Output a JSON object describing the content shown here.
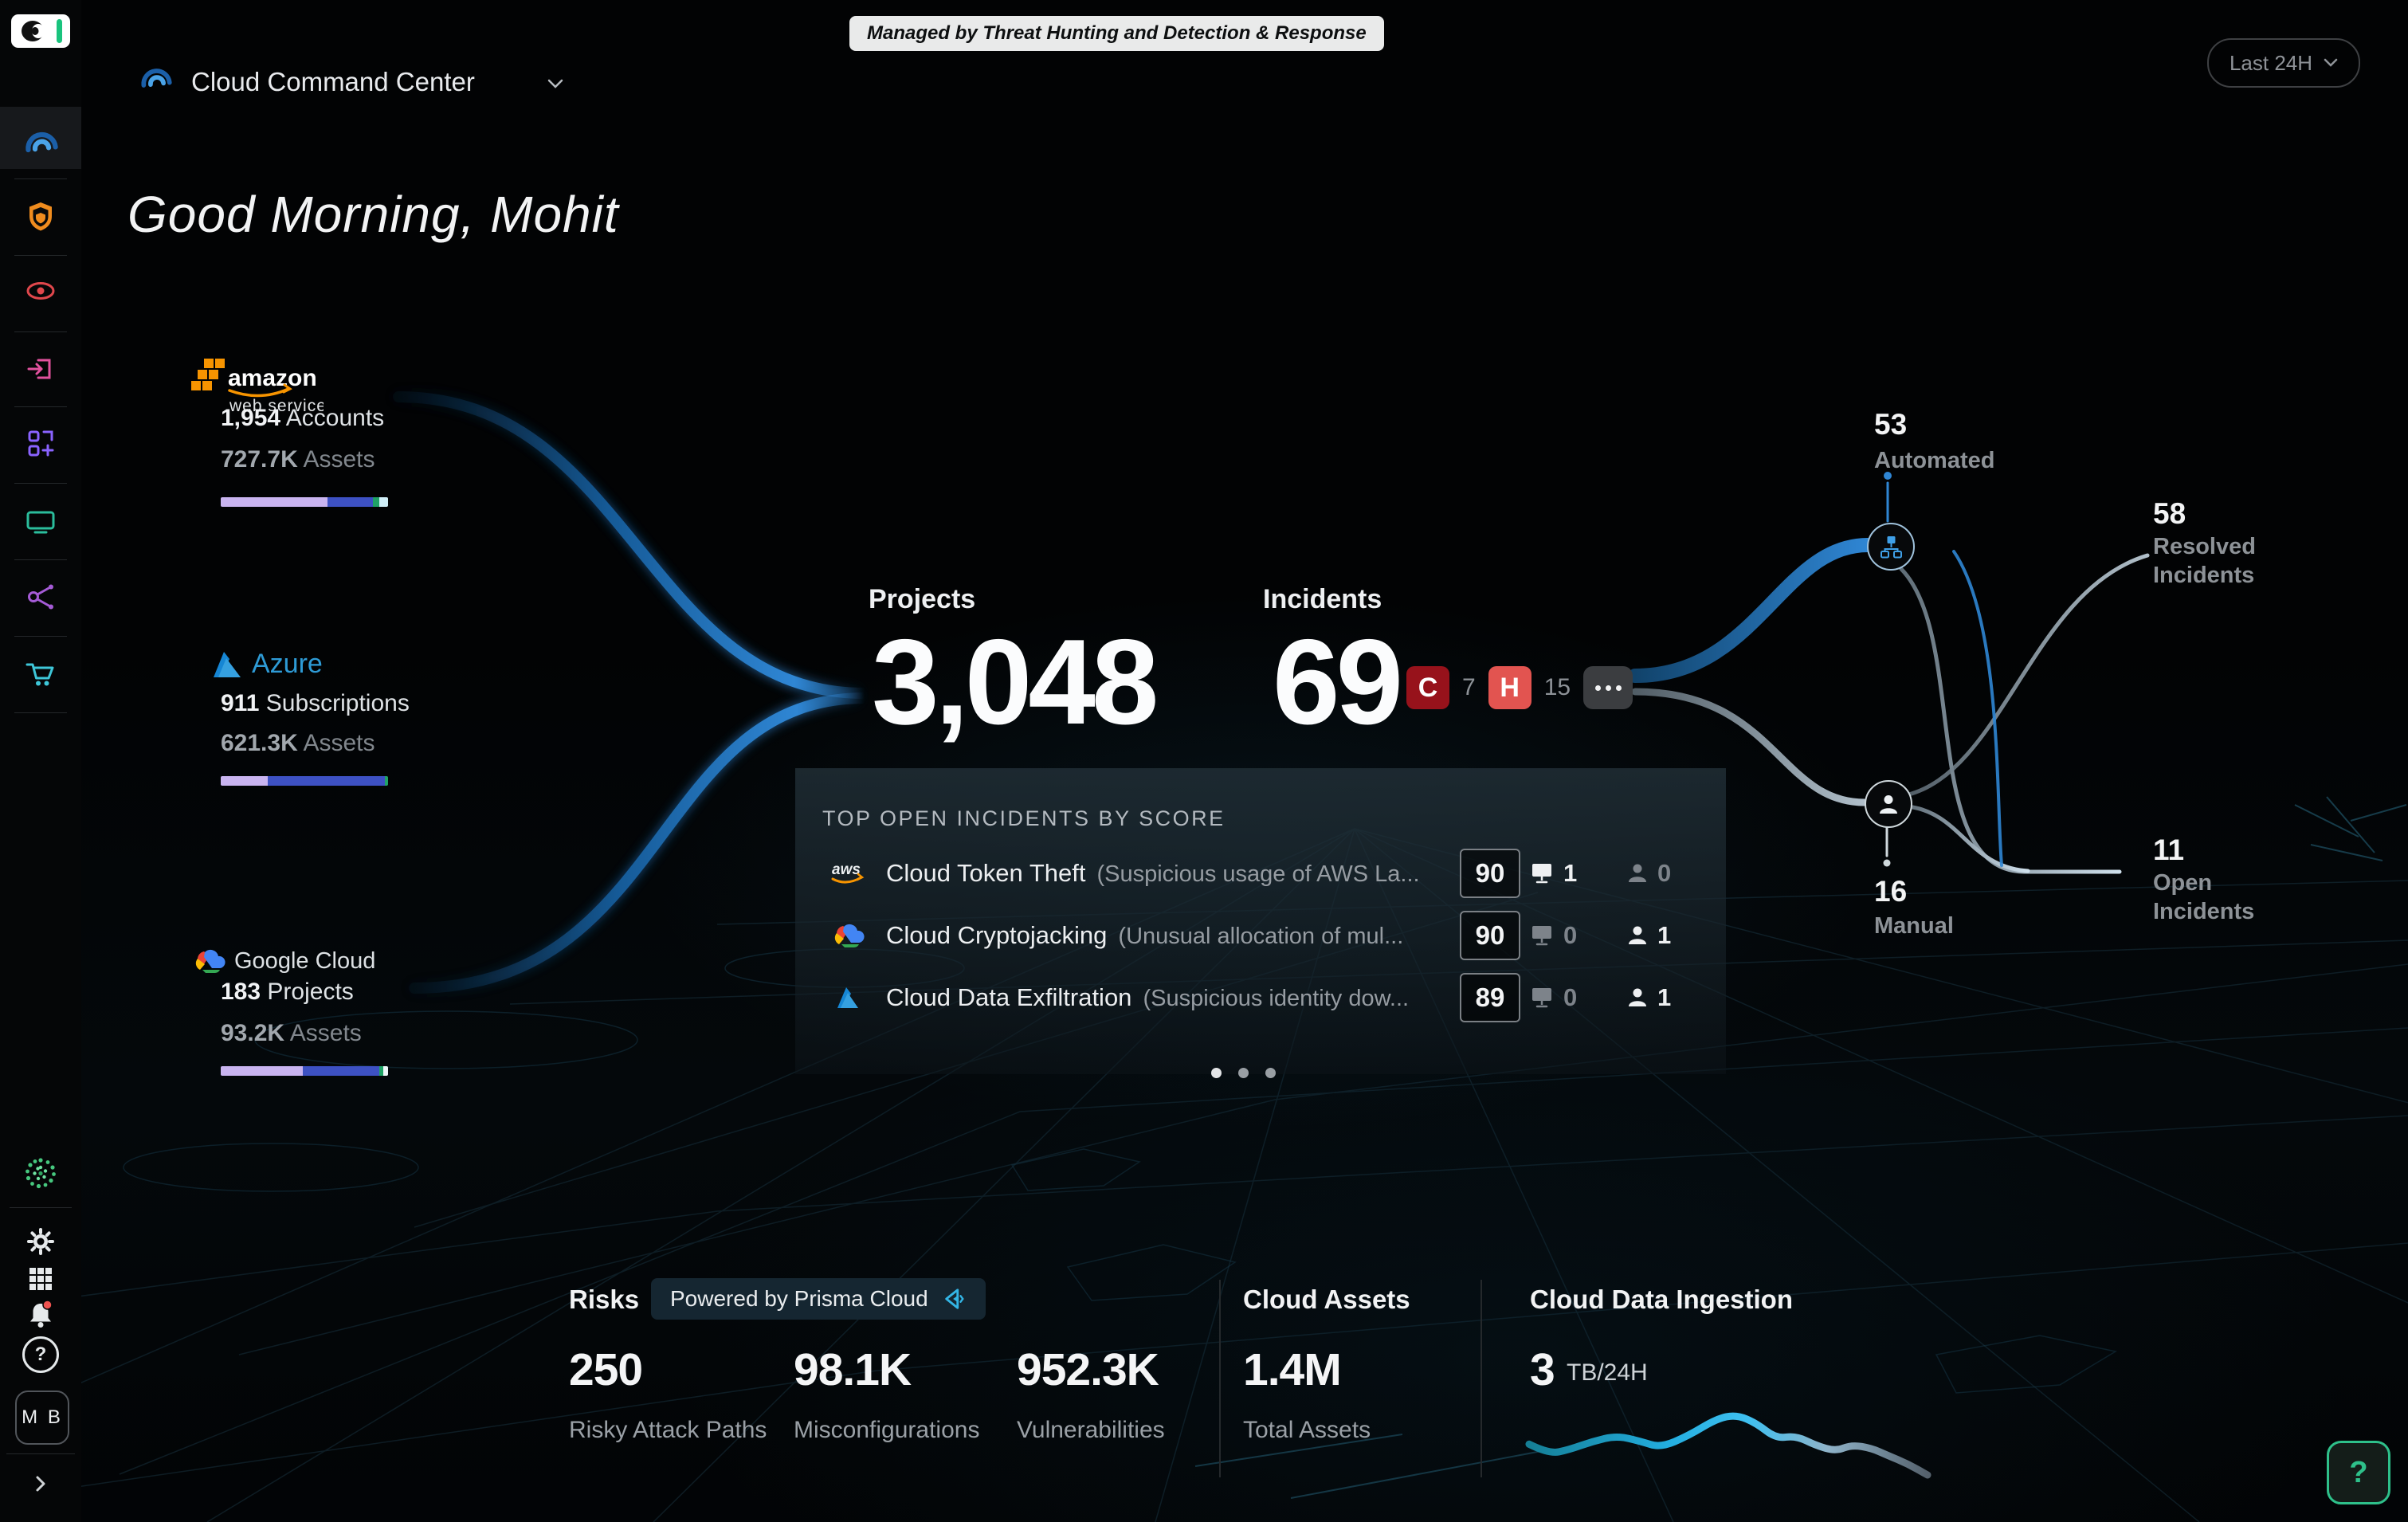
{
  "colors": {
    "accent_blue": "#2f86d4",
    "bar_lavender": "#c9b4f0",
    "bar_indigo": "#3d51c3",
    "bar_green": "#1fa266",
    "bar_cyan": "#cfeef7",
    "critical": "#97121b",
    "high": "#e25450",
    "help_green": "#2ec08a",
    "spark_cyan": "#23aee0"
  },
  "sidebar": {
    "nav": [
      {
        "name": "command-center",
        "active": true
      },
      {
        "name": "shield"
      },
      {
        "name": "eye"
      },
      {
        "name": "exit"
      },
      {
        "name": "grid-add"
      },
      {
        "name": "monitor"
      },
      {
        "name": "split"
      },
      {
        "name": "cart"
      }
    ],
    "help_glyph": "?",
    "avatar_initials": "M B"
  },
  "header": {
    "title": "Cloud Command Center",
    "managed_badge": "Managed by Threat Hunting and Detection & Response",
    "time_range": "Last 24H"
  },
  "greeting": "Good Morning, Mohit",
  "providers": [
    {
      "id": "aws",
      "logo_line1": "amazon",
      "logo_line2": "web services",
      "stat_value": "1,954",
      "stat_label": "Accounts",
      "assets_value": "727.7K",
      "assets_label": "Assets",
      "bar": [
        {
          "pct": 64,
          "color": "#c9b4f0"
        },
        {
          "pct": 27,
          "color": "#3d51c3"
        },
        {
          "pct": 4,
          "color": "#1fa266"
        },
        {
          "pct": 5,
          "color": "#cfeef7"
        }
      ]
    },
    {
      "id": "azure",
      "logo_text": "Azure",
      "stat_value": "911",
      "stat_label": "Subscriptions",
      "assets_value": "621.3K",
      "assets_label": "Assets",
      "bar": [
        {
          "pct": 28,
          "color": "#c9b4f0"
        },
        {
          "pct": 70,
          "color": "#3d51c3"
        },
        {
          "pct": 2,
          "color": "#1fa266"
        }
      ]
    },
    {
      "id": "google-cloud",
      "logo_text": "Google Cloud",
      "stat_value": "183",
      "stat_label": "Projects",
      "assets_value": "93.2K",
      "assets_label": "Assets",
      "bar": [
        {
          "pct": 49,
          "color": "#c9b4f0"
        },
        {
          "pct": 46,
          "color": "#3d51c3"
        },
        {
          "pct": 2,
          "color": "#1fa266"
        },
        {
          "pct": 3,
          "color": "#eef7fa"
        }
      ]
    }
  ],
  "kpis": {
    "projects": {
      "label": "Projects",
      "value": "3,048"
    },
    "incidents": {
      "label": "Incidents",
      "value": "69",
      "severities": [
        {
          "code": "C",
          "count": "7",
          "color": "#97121b"
        },
        {
          "code": "H",
          "count": "15",
          "color": "#e25450"
        }
      ]
    }
  },
  "top_incidents": {
    "title": "TOP OPEN INCIDENTS BY SCORE",
    "rows": [
      {
        "provider": "aws",
        "icon_text": "aws",
        "name": "Cloud Token Theft",
        "desc": "(Suspicious usage of AWS La...",
        "score": "90",
        "hosts": "1",
        "users": "0"
      },
      {
        "provider": "google-cloud",
        "name": "Cloud Cryptojacking",
        "desc": "(Unusual allocation of mul...",
        "score": "90",
        "hosts": "0",
        "users": "1"
      },
      {
        "provider": "azure",
        "name": "Cloud Data Exfiltration",
        "desc": "(Suspicious identity dow...",
        "score": "89",
        "hosts": "0",
        "users": "1"
      }
    ],
    "page_count": 3
  },
  "flow": {
    "automated": {
      "value": "53",
      "label": "Automated"
    },
    "resolved": {
      "value": "58",
      "label": "Resolved Incidents"
    },
    "manual": {
      "value": "16",
      "label": "Manual"
    },
    "open": {
      "value": "11",
      "label": "Open Incidents"
    }
  },
  "footer": {
    "risks": {
      "title": "Risks",
      "badge": "Powered by Prisma Cloud",
      "stats": [
        {
          "value": "250",
          "label": "Risky Attack Paths"
        },
        {
          "value": "98.1K",
          "label": "Misconfigurations"
        },
        {
          "value": "952.3K",
          "label": "Vulnerabilities"
        }
      ]
    },
    "cloud_assets": {
      "title": "Cloud Assets",
      "value": "1.4M",
      "label": "Total Assets"
    },
    "ingestion": {
      "title": "Cloud Data Ingestion",
      "value": "3",
      "unit": "TB/24H",
      "spark": [
        [
          0,
          0.56
        ],
        [
          0.05,
          0.7
        ],
        [
          0.1,
          0.64
        ],
        [
          0.16,
          0.52
        ],
        [
          0.22,
          0.44
        ],
        [
          0.28,
          0.52
        ],
        [
          0.33,
          0.61
        ],
        [
          0.4,
          0.44
        ],
        [
          0.47,
          0.2
        ],
        [
          0.52,
          0.14
        ],
        [
          0.57,
          0.26
        ],
        [
          0.62,
          0.48
        ],
        [
          0.67,
          0.44
        ],
        [
          0.72,
          0.58
        ],
        [
          0.77,
          0.66
        ],
        [
          0.81,
          0.57
        ],
        [
          0.86,
          0.62
        ],
        [
          0.9,
          0.72
        ],
        [
          0.95,
          0.84
        ],
        [
          1,
          1
        ]
      ]
    }
  },
  "help_button": {
    "label": "?"
  }
}
